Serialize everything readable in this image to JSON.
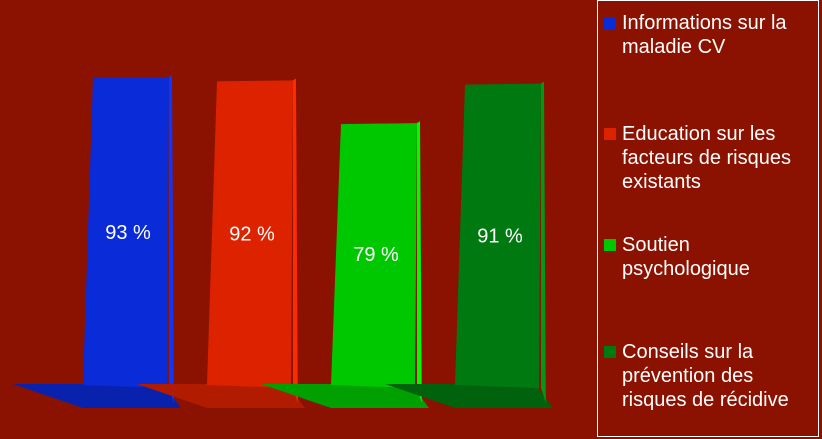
{
  "chart_data": {
    "type": "bar",
    "categories": [
      "Informations sur la maladie CV",
      "Education sur les facteurs de risques existants",
      "Soutien psychologique",
      "Conseils sur la prévention des risques de récidive"
    ],
    "values": [
      93,
      92,
      79,
      91
    ],
    "data_labels": [
      "93 %",
      "92 %",
      "79 %",
      "91 %"
    ],
    "colors": [
      "#0a2bd8",
      "#dd2200",
      "#00c800",
      "#007a10"
    ],
    "ylim": [
      0,
      100
    ],
    "grid": false,
    "legend_position": "right",
    "background": "#8b1200"
  }
}
